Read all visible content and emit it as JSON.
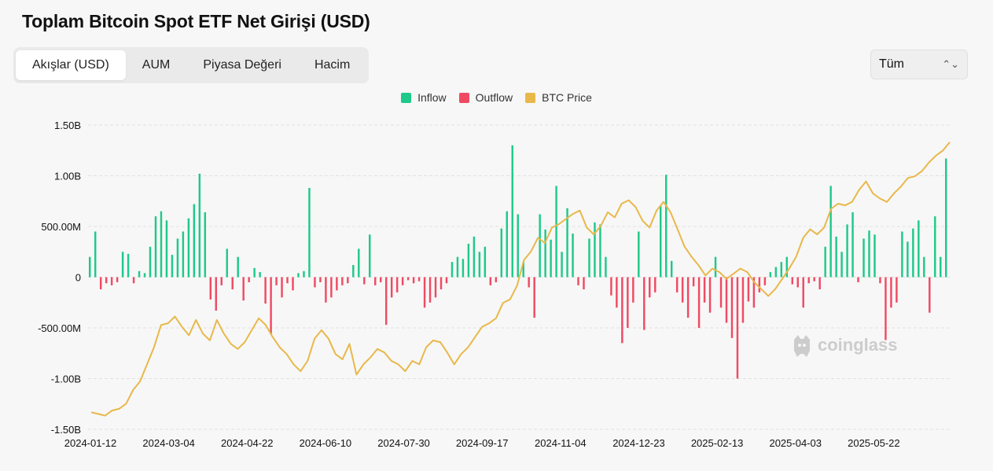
{
  "title": "Toplam Bitcoin Spot ETF Net Girişi (USD)",
  "tabs": [
    {
      "label": "Akışlar (USD)",
      "active": true
    },
    {
      "label": "AUM",
      "active": false
    },
    {
      "label": "Piyasa Değeri",
      "active": false
    },
    {
      "label": "Hacim",
      "active": false
    }
  ],
  "range_select": {
    "value": "Tüm"
  },
  "watermark": "coinglass",
  "colors": {
    "inflow": "#1ec98a",
    "outflow": "#f04a63",
    "price": "#e8b84a"
  },
  "legend": [
    {
      "label": "Inflow",
      "color": "#1ec98a"
    },
    {
      "label": "Outflow",
      "color": "#f04a63"
    },
    {
      "label": "BTC Price",
      "color": "#e8b84a"
    }
  ],
  "chart_data": {
    "type": "bar",
    "y_axis": {
      "min": -1500000000,
      "max": 1500000000,
      "ticks": [
        1500000000,
        1000000000,
        500000000,
        0,
        -500000000,
        -1000000000,
        -1500000000
      ],
      "tick_labels": [
        "1.50B",
        "1.00B",
        "500.00M",
        "0",
        "-500.00M",
        "-1.00B",
        "-1.50B"
      ]
    },
    "x_axis": {
      "tick_labels": [
        "2024-01-12",
        "2024-03-04",
        "2024-04-22",
        "2024-06-10",
        "2024-07-30",
        "2024-09-17",
        "2024-11-04",
        "2024-12-23",
        "2025-02-13",
        "2025-04-03",
        "2025-05-22"
      ]
    },
    "grid": true,
    "legend_position": "top-center",
    "series": [
      {
        "name": "Inflow / Outflow",
        "unit": "USD",
        "values": [
          200,
          450,
          -120,
          -60,
          -80,
          -50,
          250,
          230,
          -60,
          60,
          40,
          300,
          600,
          650,
          560,
          220,
          380,
          450,
          580,
          720,
          1020,
          640,
          -220,
          -330,
          -80,
          280,
          -120,
          200,
          -230,
          -50,
          90,
          50,
          -260,
          -560,
          -80,
          -200,
          -60,
          -130,
          40,
          60,
          880,
          -100,
          -50,
          -250,
          -200,
          -130,
          -80,
          -60,
          120,
          280,
          -70,
          420,
          -80,
          -50,
          -470,
          -200,
          -150,
          -80,
          -30,
          -60,
          -40,
          -300,
          -250,
          -200,
          -120,
          -60,
          150,
          200,
          180,
          330,
          400,
          250,
          300,
          -80,
          -50,
          480,
          650,
          1300,
          620,
          150,
          -100,
          -400,
          620,
          470,
          370,
          900,
          250,
          680,
          430,
          -80,
          -120,
          380,
          540,
          520,
          200,
          -180,
          -300,
          -650,
          -500,
          -250,
          450,
          -520,
          -200,
          -150,
          700,
          1010,
          160,
          -150,
          -250,
          -400,
          -90,
          -500,
          -250,
          -350,
          200,
          -300,
          -450,
          -600,
          -1000,
          -450,
          -240,
          -300,
          -150,
          -80,
          50,
          100,
          150,
          200,
          -70,
          -100,
          -300,
          -60,
          -40,
          -120,
          300,
          900,
          400,
          250,
          520,
          640,
          -50,
          380,
          460,
          420,
          -60,
          -620,
          -300,
          -250,
          450,
          350,
          480,
          560,
          200,
          -350,
          600,
          200,
          1170
        ]
      },
      {
        "name": "BTC Price",
        "unit": "USD",
        "values": [
          43000,
          42500,
          42000,
          43500,
          44000,
          45500,
          49500,
          52000,
          57000,
          62000,
          68500,
          69000,
          71000,
          68000,
          65500,
          70000,
          66000,
          64000,
          70000,
          66000,
          63000,
          61500,
          63500,
          67000,
          70500,
          68500,
          65000,
          62000,
          60000,
          57000,
          55000,
          58000,
          64500,
          67000,
          64500,
          60000,
          58500,
          63000,
          54000,
          57000,
          59000,
          61500,
          60500,
          58000,
          57000,
          55000,
          58000,
          57000,
          62000,
          64000,
          63500,
          60500,
          57000,
          60000,
          62000,
          65000,
          68000,
          69000,
          70500,
          75000,
          76000,
          80000,
          87500,
          90000,
          94000,
          92500,
          97000,
          98000,
          99500,
          101000,
          102000,
          97000,
          95000,
          97500,
          101500,
          100000,
          104000,
          105000,
          103000,
          99000,
          97000,
          102000,
          104500,
          101500,
          96500,
          91500,
          88500,
          86000,
          83000,
          85000,
          84000,
          82000,
          83500,
          85000,
          84000,
          81000,
          79000,
          77000,
          79000,
          82000,
          85000,
          88500,
          94000,
          96500,
          95000,
          97000,
          102500,
          104000,
          103500,
          104500,
          108000,
          110500,
          107000,
          105500,
          104500,
          107000,
          109000,
          111500,
          112000,
          113500,
          116000,
          118000,
          119500,
          122000
        ]
      }
    ],
    "price_y_range": [
      38000,
      127000
    ]
  }
}
